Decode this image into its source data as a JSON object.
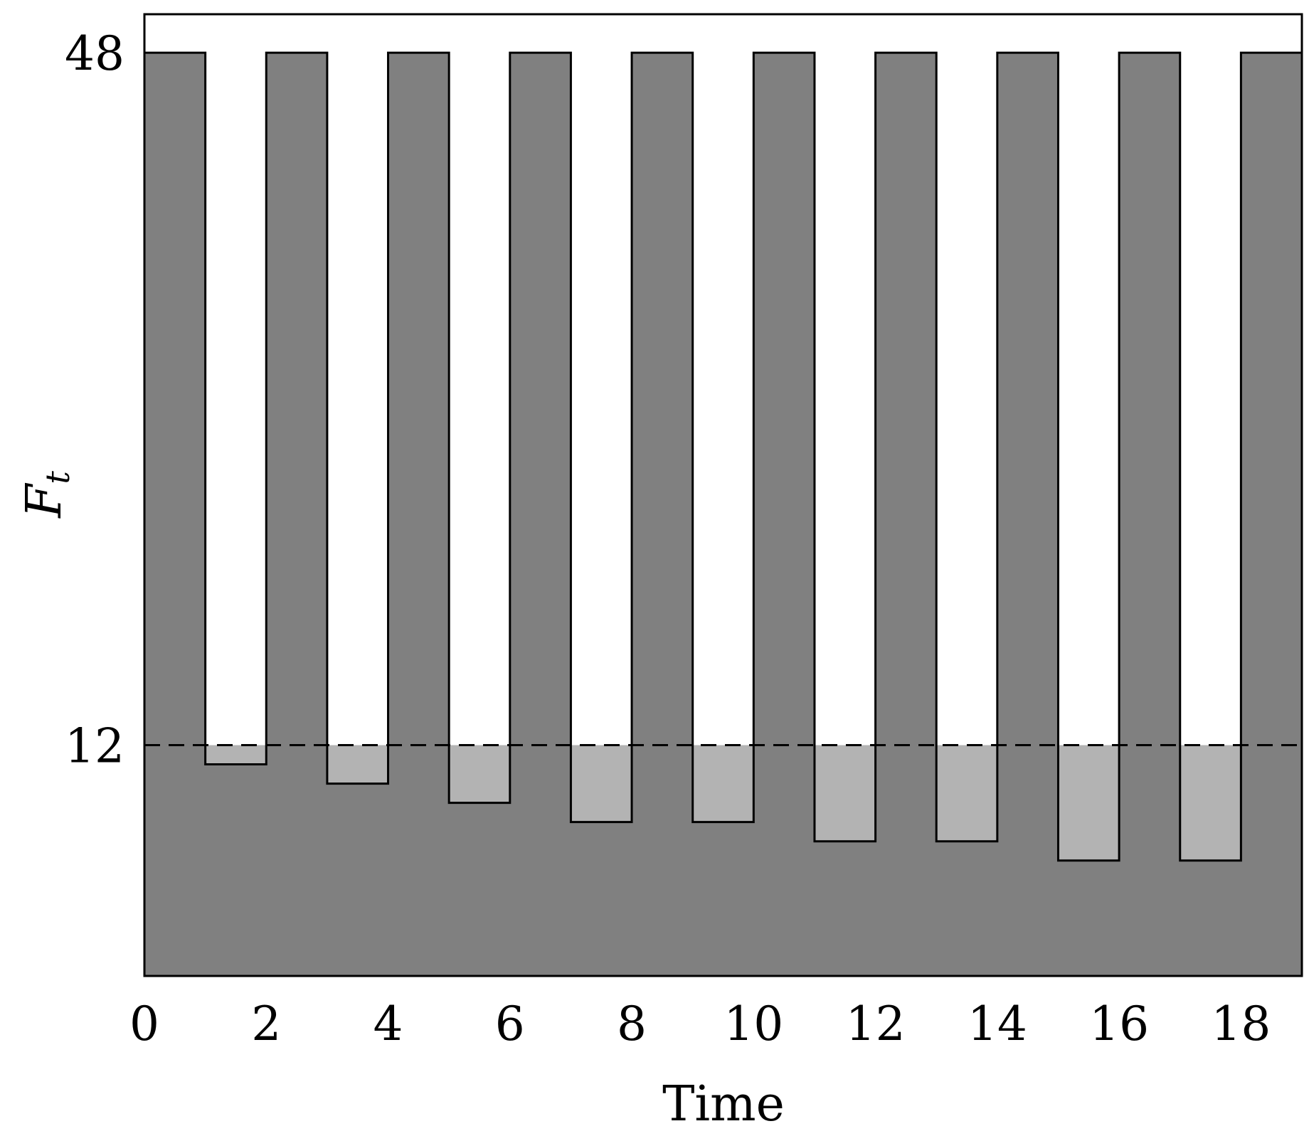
{
  "chart_data": {
    "type": "area",
    "xlabel": "Time",
    "ylabel": "F",
    "ylabel_subscript": "t",
    "xlim": [
      0,
      19
    ],
    "ylim": [
      0,
      50
    ],
    "x_ticks": [
      "0",
      "2",
      "4",
      "6",
      "8",
      "10",
      "12",
      "14",
      "16",
      "18"
    ],
    "y_ticks": [
      "12",
      "48"
    ],
    "y_tick_values": [
      12,
      48
    ],
    "threshold": 12,
    "threshold_style": "dashed",
    "series": [
      {
        "x": [
          0,
          1,
          1,
          2,
          2,
          3,
          3,
          4,
          4,
          5,
          5,
          6,
          6,
          7,
          7,
          8,
          8,
          9,
          9,
          10,
          10,
          11,
          11,
          12,
          12,
          13,
          13,
          14,
          14,
          15,
          15,
          16,
          16,
          17,
          17,
          18,
          18,
          19
        ],
        "y": [
          48,
          48,
          11,
          11,
          48,
          48,
          10,
          10,
          48,
          48,
          9,
          9,
          48,
          48,
          8,
          8,
          48,
          48,
          8,
          8,
          48,
          48,
          7,
          7,
          48,
          48,
          7,
          7,
          48,
          48,
          6,
          6,
          48,
          48,
          6,
          6,
          48,
          48
        ]
      }
    ],
    "colors": {
      "fill": "#808080",
      "below_threshold_fill": "#b3b3b3",
      "line": "#000000"
    },
    "grid": false
  }
}
